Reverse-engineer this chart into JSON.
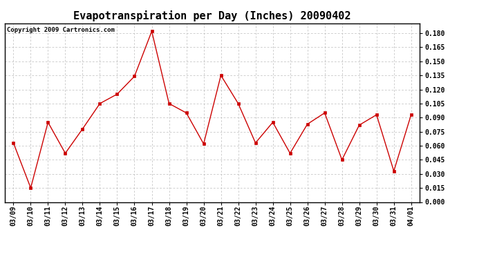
{
  "title": "Evapotranspiration per Day (Inches) 20090402",
  "copyright_text": "Copyright 2009 Cartronics.com",
  "x_labels": [
    "03/09",
    "03/10",
    "03/11",
    "03/12",
    "03/13",
    "03/14",
    "03/15",
    "03/16",
    "03/17",
    "03/18",
    "03/19",
    "03/20",
    "03/21",
    "03/22",
    "03/23",
    "03/24",
    "03/25",
    "03/26",
    "03/27",
    "03/28",
    "03/29",
    "03/30",
    "03/31",
    "04/01"
  ],
  "y_values": [
    0.063,
    0.015,
    0.085,
    0.052,
    0.078,
    0.105,
    0.115,
    0.134,
    0.182,
    0.105,
    0.095,
    0.062,
    0.135,
    0.105,
    0.063,
    0.085,
    0.052,
    0.083,
    0.095,
    0.045,
    0.082,
    0.093,
    0.033,
    0.093
  ],
  "line_color": "#cc0000",
  "marker": "s",
  "marker_color": "#cc0000",
  "marker_size": 3,
  "ylim": [
    0.0,
    0.1905
  ],
  "yticks": [
    0.0,
    0.015,
    0.03,
    0.045,
    0.06,
    0.075,
    0.09,
    0.105,
    0.12,
    0.135,
    0.15,
    0.165,
    0.18
  ],
  "background_color": "#ffffff",
  "grid_color": "#bbbbbb",
  "title_fontsize": 11,
  "tick_fontsize": 7,
  "copyright_fontsize": 6.5
}
